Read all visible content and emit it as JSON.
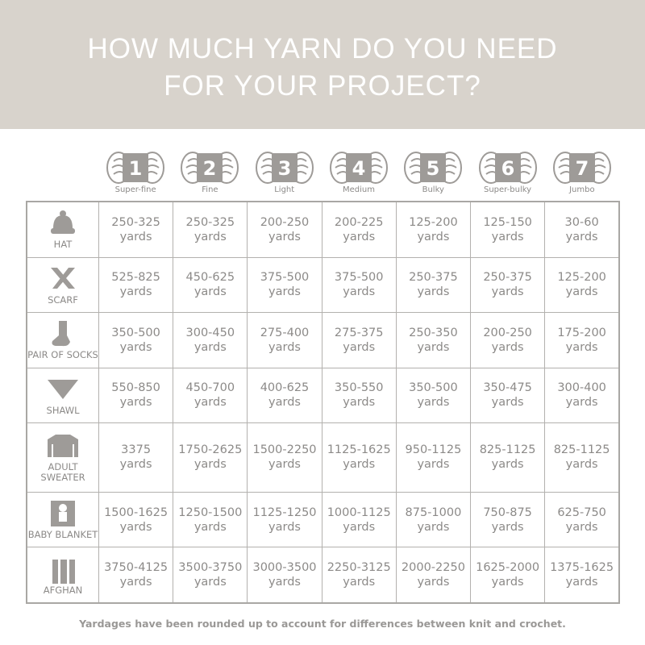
{
  "header": {
    "title_line1": "HOW MUCH YARN DO YOU NEED",
    "title_line2": "FOR YOUR PROJECT?",
    "background_color": "#d8d3cc"
  },
  "weights": [
    {
      "number": "1",
      "label": "Super-fine"
    },
    {
      "number": "2",
      "label": "Fine"
    },
    {
      "number": "3",
      "label": "Light"
    },
    {
      "number": "4",
      "label": "Medium"
    },
    {
      "number": "5",
      "label": "Bulky"
    },
    {
      "number": "6",
      "label": "Super-bulky"
    },
    {
      "number": "7",
      "label": "Jumbo"
    }
  ],
  "unit": "yards",
  "rows": [
    {
      "project": "HAT",
      "icon": "hat-icon",
      "values": [
        "250-325",
        "250-325",
        "200-250",
        "200-225",
        "125-200",
        "125-150",
        "30-60"
      ]
    },
    {
      "project": "SCARF",
      "icon": "scarf-icon",
      "values": [
        "525-825",
        "450-625",
        "375-500",
        "375-500",
        "250-375",
        "250-375",
        "125-200"
      ]
    },
    {
      "project": "PAIR OF SOCKS",
      "icon": "sock-icon",
      "values": [
        "350-500",
        "300-450",
        "275-400",
        "275-375",
        "250-350",
        "200-250",
        "175-200"
      ]
    },
    {
      "project": "SHAWL",
      "icon": "shawl-icon",
      "values": [
        "550-850",
        "450-700",
        "400-625",
        "350-550",
        "350-500",
        "350-475",
        "300-400"
      ]
    },
    {
      "project": "ADULT SWEATER",
      "icon": "sweater-icon",
      "values": [
        "3375",
        "1750-2625",
        "1500-2250",
        "1125-1625",
        "950-1125",
        "825-1125",
        "825-1125"
      ]
    },
    {
      "project": "BABY BLANKET",
      "icon": "baby-blanket-icon",
      "values": [
        "1500-1625",
        "1250-1500",
        "1125-1250",
        "1000-1125",
        "875-1000",
        "750-875",
        "625-750"
      ]
    },
    {
      "project": "AFGHAN",
      "icon": "afghan-icon",
      "values": [
        "3750-4125",
        "3500-3750",
        "3000-3500",
        "2250-3125",
        "2000-2250",
        "1625-2000",
        "1375-1625"
      ]
    }
  ],
  "footnote": "Yardages have been rounded up to account for differences between knit and crochet."
}
